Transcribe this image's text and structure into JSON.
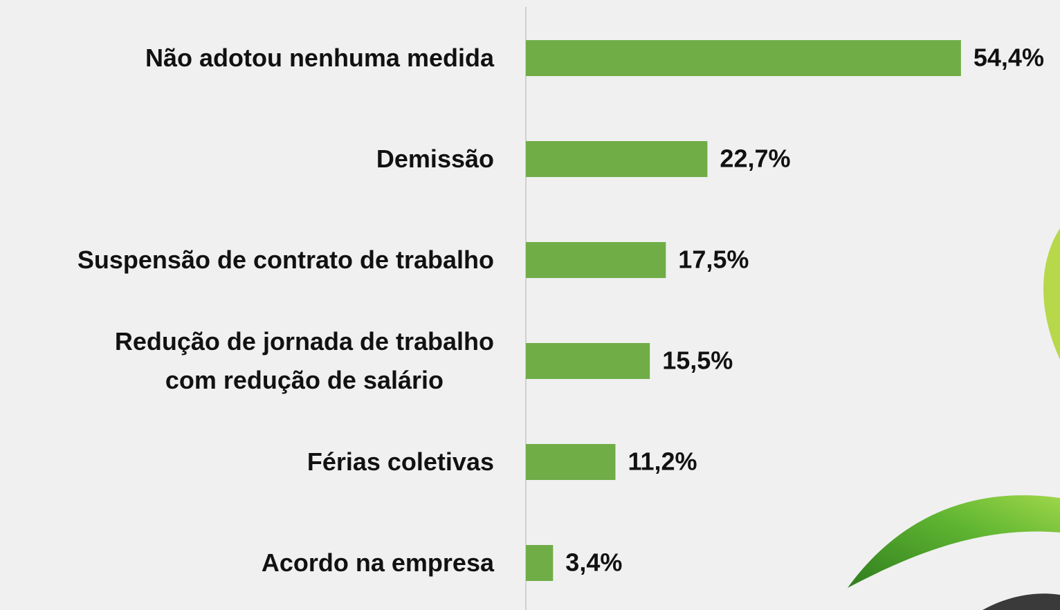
{
  "chart_data": {
    "type": "barh",
    "categories": [
      "Não adotou nenhuma medida",
      "Demissão",
      "Suspensão de contrato de trabalho",
      "Redução de jornada de trabalho\ncom redução de salário",
      "Férias coletivas",
      "Acordo na empresa"
    ],
    "values": [
      54.4,
      22.7,
      17.5,
      15.5,
      11.2,
      3.4
    ],
    "value_labels": [
      "54,4%",
      "22,7%",
      "17,5%",
      "15,5%",
      "11,2%",
      "3,4%"
    ],
    "color": "#70ad47",
    "xlim": [
      0,
      66
    ]
  }
}
